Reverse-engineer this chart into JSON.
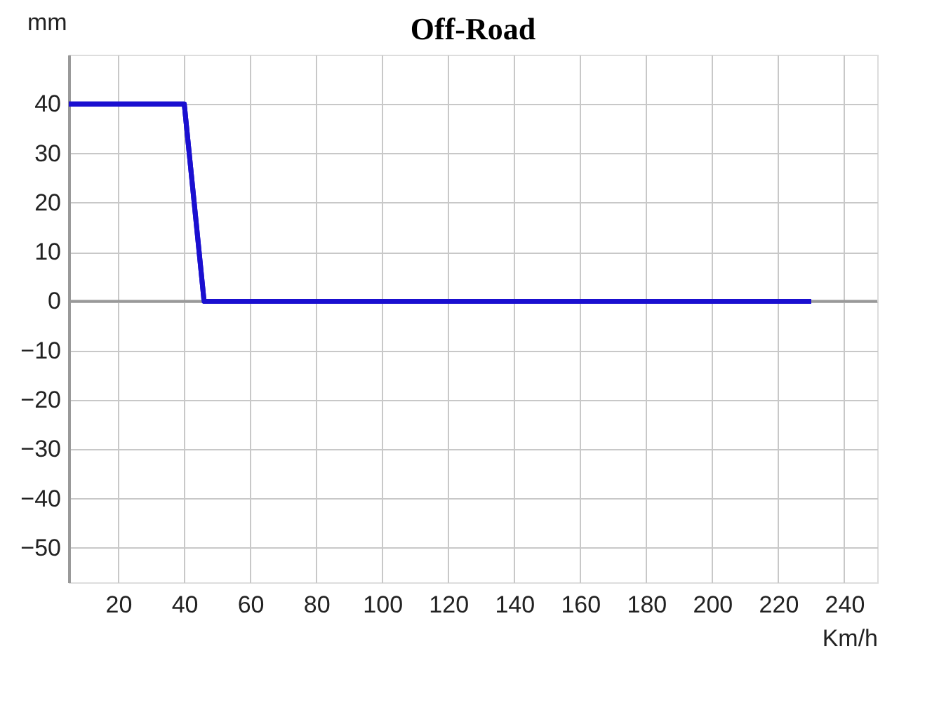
{
  "chart_data": {
    "type": "line",
    "title": "Off-Road",
    "xlabel": "Km/h",
    "ylabel": "mm",
    "x": [
      5,
      40,
      46,
      230
    ],
    "series": [
      {
        "color": "#1a0fd0",
        "values": [
          40,
          40,
          0,
          0
        ]
      }
    ],
    "xlim": [
      5,
      250
    ],
    "xticks": [
      20,
      40,
      60,
      80,
      100,
      120,
      140,
      160,
      180,
      200,
      220,
      240
    ],
    "ylim": [
      -57,
      50
    ],
    "yticks": [
      -50,
      -40,
      -30,
      -20,
      -10,
      0,
      10,
      20,
      30,
      40
    ],
    "ref_lines": [
      {
        "axis": "y",
        "value": 0,
        "color": "#999999"
      }
    ],
    "grid": true,
    "marker": "none",
    "line_style": "solid"
  }
}
